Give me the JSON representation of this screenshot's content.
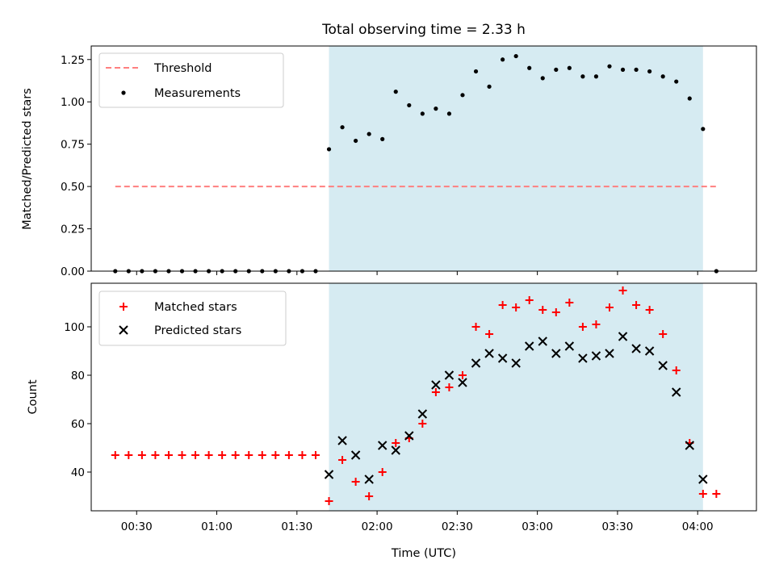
{
  "chart_data": [
    {
      "type": "scatter",
      "title": "Total observing time = 2.33 h",
      "xlabel": "",
      "ylabel": "Matched/Predicted stars",
      "ylim": [
        0,
        1.33
      ],
      "yticks": [
        "0.00",
        "0.25",
        "0.50",
        "0.75",
        "1.00",
        "1.25"
      ],
      "grid": false,
      "legend_position": "top-left",
      "highlight_span": [
        "01:42",
        "04:02"
      ],
      "highlight_color": "#add8e6",
      "threshold": {
        "name": "Threshold",
        "value": 0.5,
        "color": "#ff7f7f",
        "x_range": [
          "00:22",
          "04:07"
        ]
      },
      "series": [
        {
          "name": "Measurements",
          "color": "#000000",
          "x": [
            "00:22",
            "00:27",
            "00:32",
            "00:37",
            "00:42",
            "00:47",
            "00:52",
            "00:57",
            "01:02",
            "01:07",
            "01:12",
            "01:17",
            "01:22",
            "01:27",
            "01:32",
            "01:37",
            "01:42",
            "01:47",
            "01:52",
            "01:57",
            "02:02",
            "02:07",
            "02:12",
            "02:17",
            "02:22",
            "02:27",
            "02:32",
            "02:37",
            "02:42",
            "02:47",
            "02:52",
            "02:57",
            "03:02",
            "03:07",
            "03:12",
            "03:17",
            "03:22",
            "03:27",
            "03:32",
            "03:37",
            "03:42",
            "03:47",
            "03:52",
            "03:57",
            "04:02",
            "04:07"
          ],
          "y": [
            0,
            0,
            0,
            0,
            0,
            0,
            0,
            0,
            0,
            0,
            0,
            0,
            0,
            0,
            0,
            0,
            0.72,
            0.85,
            0.77,
            0.81,
            0.78,
            1.06,
            0.98,
            0.93,
            0.96,
            0.93,
            1.04,
            1.18,
            1.09,
            1.25,
            1.27,
            1.2,
            1.14,
            1.19,
            1.2,
            1.15,
            1.15,
            1.21,
            1.19,
            1.19,
            1.18,
            1.15,
            1.12,
            1.02,
            0.84,
            0
          ]
        }
      ]
    },
    {
      "type": "scatter",
      "title": "",
      "xlabel": "Time (UTC)",
      "ylabel": "Count",
      "ylim": [
        24,
        118
      ],
      "yticks": [
        "40",
        "60",
        "80",
        "100"
      ],
      "xlim": [
        "00:13",
        "04:22"
      ],
      "xticks": [
        "00:30",
        "01:00",
        "01:30",
        "02:00",
        "02:30",
        "03:00",
        "03:30",
        "04:00"
      ],
      "grid": false,
      "legend_position": "top-left",
      "series": [
        {
          "name": "Matched stars",
          "color": "#ff0000",
          "marker": "+",
          "x": [
            "00:22",
            "00:27",
            "00:32",
            "00:37",
            "00:42",
            "00:47",
            "00:52",
            "00:57",
            "01:02",
            "01:07",
            "01:12",
            "01:17",
            "01:22",
            "01:27",
            "01:32",
            "01:37",
            "01:42",
            "01:47",
            "01:52",
            "01:57",
            "02:02",
            "02:07",
            "02:12",
            "02:17",
            "02:22",
            "02:27",
            "02:32",
            "02:37",
            "02:42",
            "02:47",
            "02:52",
            "02:57",
            "03:02",
            "03:07",
            "03:12",
            "03:17",
            "03:22",
            "03:27",
            "03:32",
            "03:37",
            "03:42",
            "03:47",
            "03:52",
            "03:57",
            "04:02",
            "04:07"
          ],
          "y": [
            47,
            47,
            47,
            47,
            47,
            47,
            47,
            47,
            47,
            47,
            47,
            47,
            47,
            47,
            47,
            47,
            28,
            45,
            36,
            30,
            40,
            52,
            54,
            60,
            73,
            75,
            80,
            100,
            97,
            109,
            108,
            111,
            107,
            106,
            110,
            100,
            101,
            108,
            115,
            109,
            107,
            97,
            82,
            52,
            31,
            31
          ]
        },
        {
          "name": "Predicted stars",
          "color": "#000000",
          "marker": "x",
          "x": [
            "01:42",
            "01:47",
            "01:52",
            "01:57",
            "02:02",
            "02:07",
            "02:12",
            "02:17",
            "02:22",
            "02:27",
            "02:32",
            "02:37",
            "02:42",
            "02:47",
            "02:52",
            "02:57",
            "03:02",
            "03:07",
            "03:12",
            "03:17",
            "03:22",
            "03:27",
            "03:32",
            "03:37",
            "03:42",
            "03:47",
            "03:52",
            "03:57",
            "04:02"
          ],
          "y": [
            39,
            53,
            47,
            37,
            51,
            49,
            55,
            64,
            76,
            80,
            77,
            85,
            89,
            87,
            85,
            92,
            94,
            89,
            92,
            87,
            88,
            89,
            96,
            91,
            90,
            84,
            73,
            51,
            37
          ]
        }
      ]
    }
  ]
}
